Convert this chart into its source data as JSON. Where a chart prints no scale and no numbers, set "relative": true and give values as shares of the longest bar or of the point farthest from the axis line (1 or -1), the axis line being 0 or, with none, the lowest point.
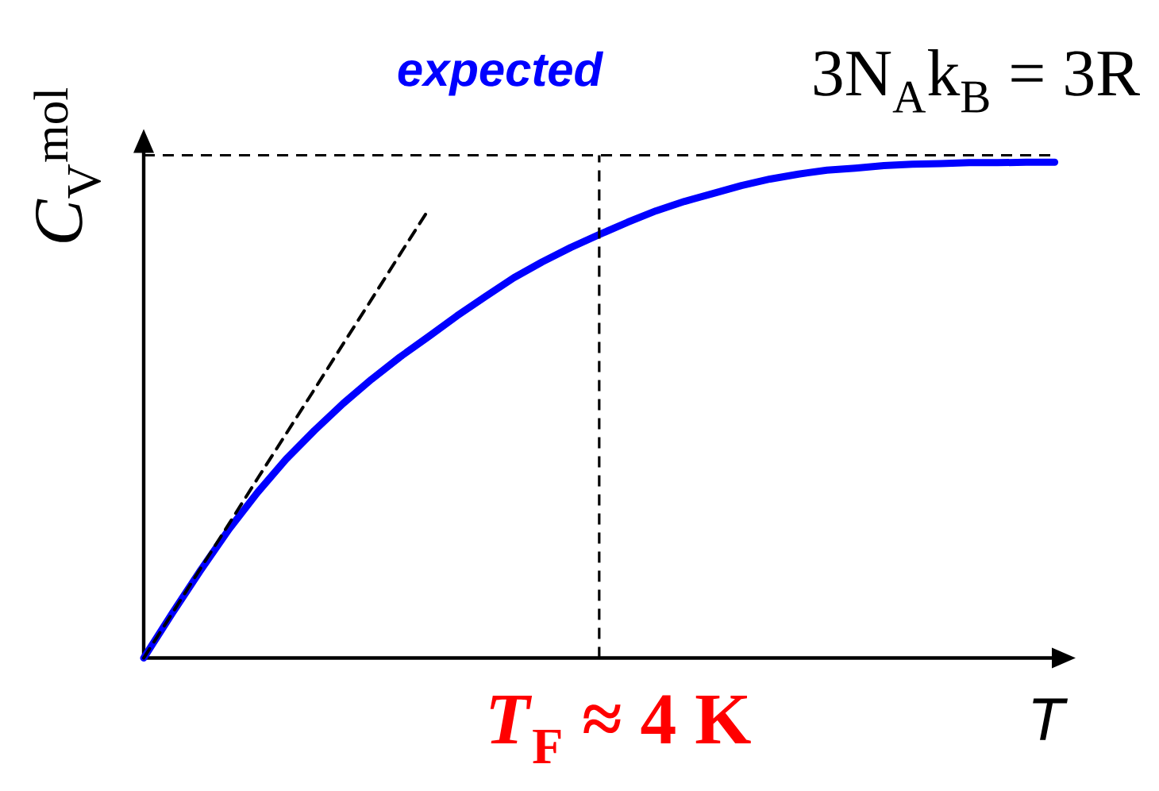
{
  "chart_data": {
    "type": "line",
    "relative": true,
    "xlabel": "T",
    "ylabel": "*C*$_{V}$$^{mol}$",
    "categories": [
      null,
      null,
      null,
      null,
      null,
      null,
      null,
      null,
      null,
      null,
      null,
      null,
      null,
      null,
      null,
      null,
      null,
      null,
      null,
      null,
      null,
      null,
      null,
      null,
      null,
      null,
      null,
      null,
      null,
      null,
      null,
      null,
      null
    ],
    "series": [
      {
        "name": "expected",
        "color": "#0000ff",
        "values": [
          0,
          0.09,
          0.177,
          0.26,
          0.334,
          0.401,
          0.459,
          0.513,
          0.562,
          0.607,
          0.648,
          0.69,
          0.729,
          0.767,
          0.799,
          0.828,
          0.854,
          0.879,
          0.902,
          0.921,
          0.937,
          0.953,
          0.966,
          0.976,
          0.984,
          0.988,
          0.993,
          0.996,
          0.997,
          0.999,
          0.999,
          1,
          1
        ]
      },
      {
        "type": "line",
        "color": "#000000",
        "line_style": "dashed",
        "values": [
          0,
          0.09,
          0.181,
          0.271,
          0.362,
          0.452,
          0.542,
          0.633,
          0.723,
          0.814,
          0.904,
          null,
          null,
          null,
          null,
          null,
          null,
          null,
          null,
          null,
          null,
          null,
          null,
          null,
          null,
          null,
          null,
          null,
          null,
          null,
          null,
          null,
          null
        ]
      }
    ],
    "ref_lines": [
      {
        "axis": "y",
        "value": 1.014,
        "color": "#000000",
        "line_style": "dashed"
      }
    ],
    "annotations": [
      "3N$_{A}$k$_{B}$ = 3R",
      "*T*$_{F}$ ≈ 4 K"
    ]
  }
}
